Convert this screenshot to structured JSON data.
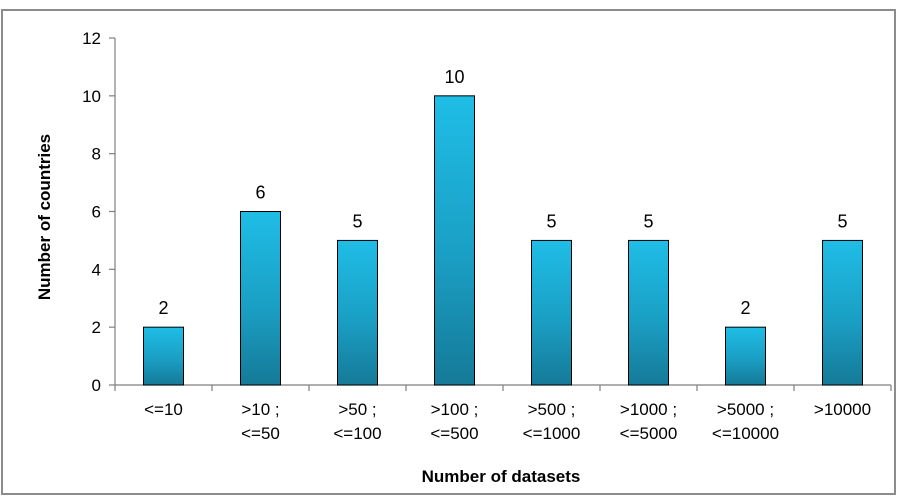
{
  "chart_data": {
    "type": "bar",
    "title": "",
    "xlabel": "Number of datasets",
    "ylabel": "Number of countries",
    "ylim": [
      0,
      12
    ],
    "yticks": [
      0,
      2,
      4,
      6,
      8,
      10,
      12
    ],
    "grid": false,
    "legend": "none",
    "categories": [
      [
        "<=10"
      ],
      [
        ">10 ;",
        "<=50"
      ],
      [
        ">50 ;",
        "<=100"
      ],
      [
        ">100 ;",
        "<=500"
      ],
      [
        ">500 ;",
        "<=1000"
      ],
      [
        ">1000 ;",
        "<=5000"
      ],
      [
        ">5000 ;",
        "<=10000"
      ],
      [
        ">10000"
      ]
    ],
    "values": [
      2,
      6,
      5,
      10,
      5,
      5,
      2,
      5
    ],
    "data_labels": [
      "2",
      "6",
      "5",
      "10",
      "5",
      "5",
      "2",
      "5"
    ],
    "colors": {
      "bar_light": "#1fbde6",
      "bar_mid": "#1a9fc4",
      "bar_dark": "#157a98",
      "axis": "#7f7f7f",
      "frame": "#8c8c8c"
    }
  }
}
